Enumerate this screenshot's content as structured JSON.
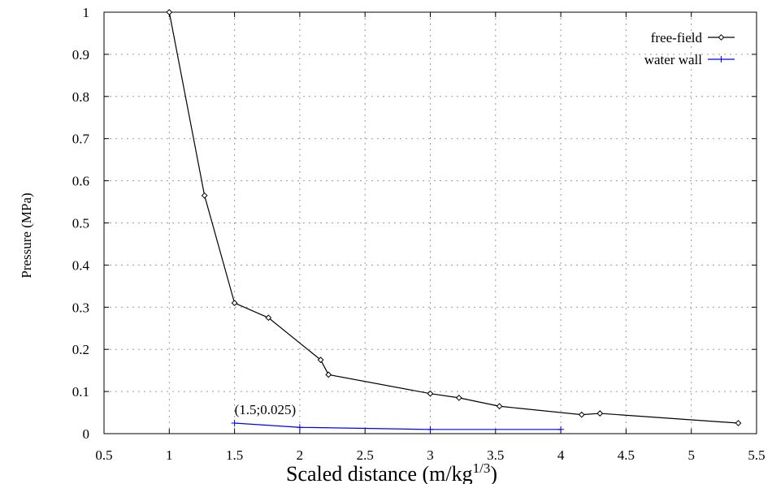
{
  "chart_data": {
    "type": "line",
    "title": "",
    "xlabel": "Scaled distance (m/kg",
    "xlabel_superscript": "1/3",
    "xlabel_suffix": ")",
    "ylabel": "Pressure (MPa)",
    "xlim": [
      0.5,
      5.5
    ],
    "ylim": [
      0,
      1
    ],
    "x_ticks": [
      0.5,
      1,
      1.5,
      2,
      2.5,
      3,
      3.5,
      4,
      4.5,
      5,
      5.5
    ],
    "x_tick_labels": [
      "0.5",
      "1",
      "1.5",
      "2",
      "2.5",
      "3",
      "3.5",
      "4",
      "4.5",
      "5",
      "5.5"
    ],
    "y_ticks": [
      0,
      0.1,
      0.2,
      0.3,
      0.4,
      0.5,
      0.6,
      0.7,
      0.8,
      0.9,
      1
    ],
    "y_tick_labels": [
      "0",
      "0.1",
      "0.2",
      "0.3",
      "0.4",
      "0.5",
      "0.6",
      "0.7",
      "0.8",
      "0.9",
      "1"
    ],
    "grid": true,
    "legend_position": "top-right",
    "series": [
      {
        "name": "free-field",
        "color": "#000000",
        "marker": "diamond",
        "x": [
          1.0,
          1.27,
          1.5,
          1.76,
          2.16,
          2.22,
          3.0,
          3.22,
          3.53,
          4.16,
          4.3,
          5.36
        ],
        "y": [
          1.0,
          0.565,
          0.31,
          0.275,
          0.175,
          0.14,
          0.095,
          0.085,
          0.065,
          0.045,
          0.048,
          0.025
        ]
      },
      {
        "name": "water wall",
        "color": "#0000ff",
        "marker": "plus",
        "x": [
          1.5,
          2.0,
          3.0,
          4.0
        ],
        "y": [
          0.025,
          0.015,
          0.01,
          0.01
        ]
      }
    ],
    "annotations": [
      {
        "text": "(1.5;0.025)",
        "x": 1.5,
        "y": 0.025
      }
    ]
  }
}
